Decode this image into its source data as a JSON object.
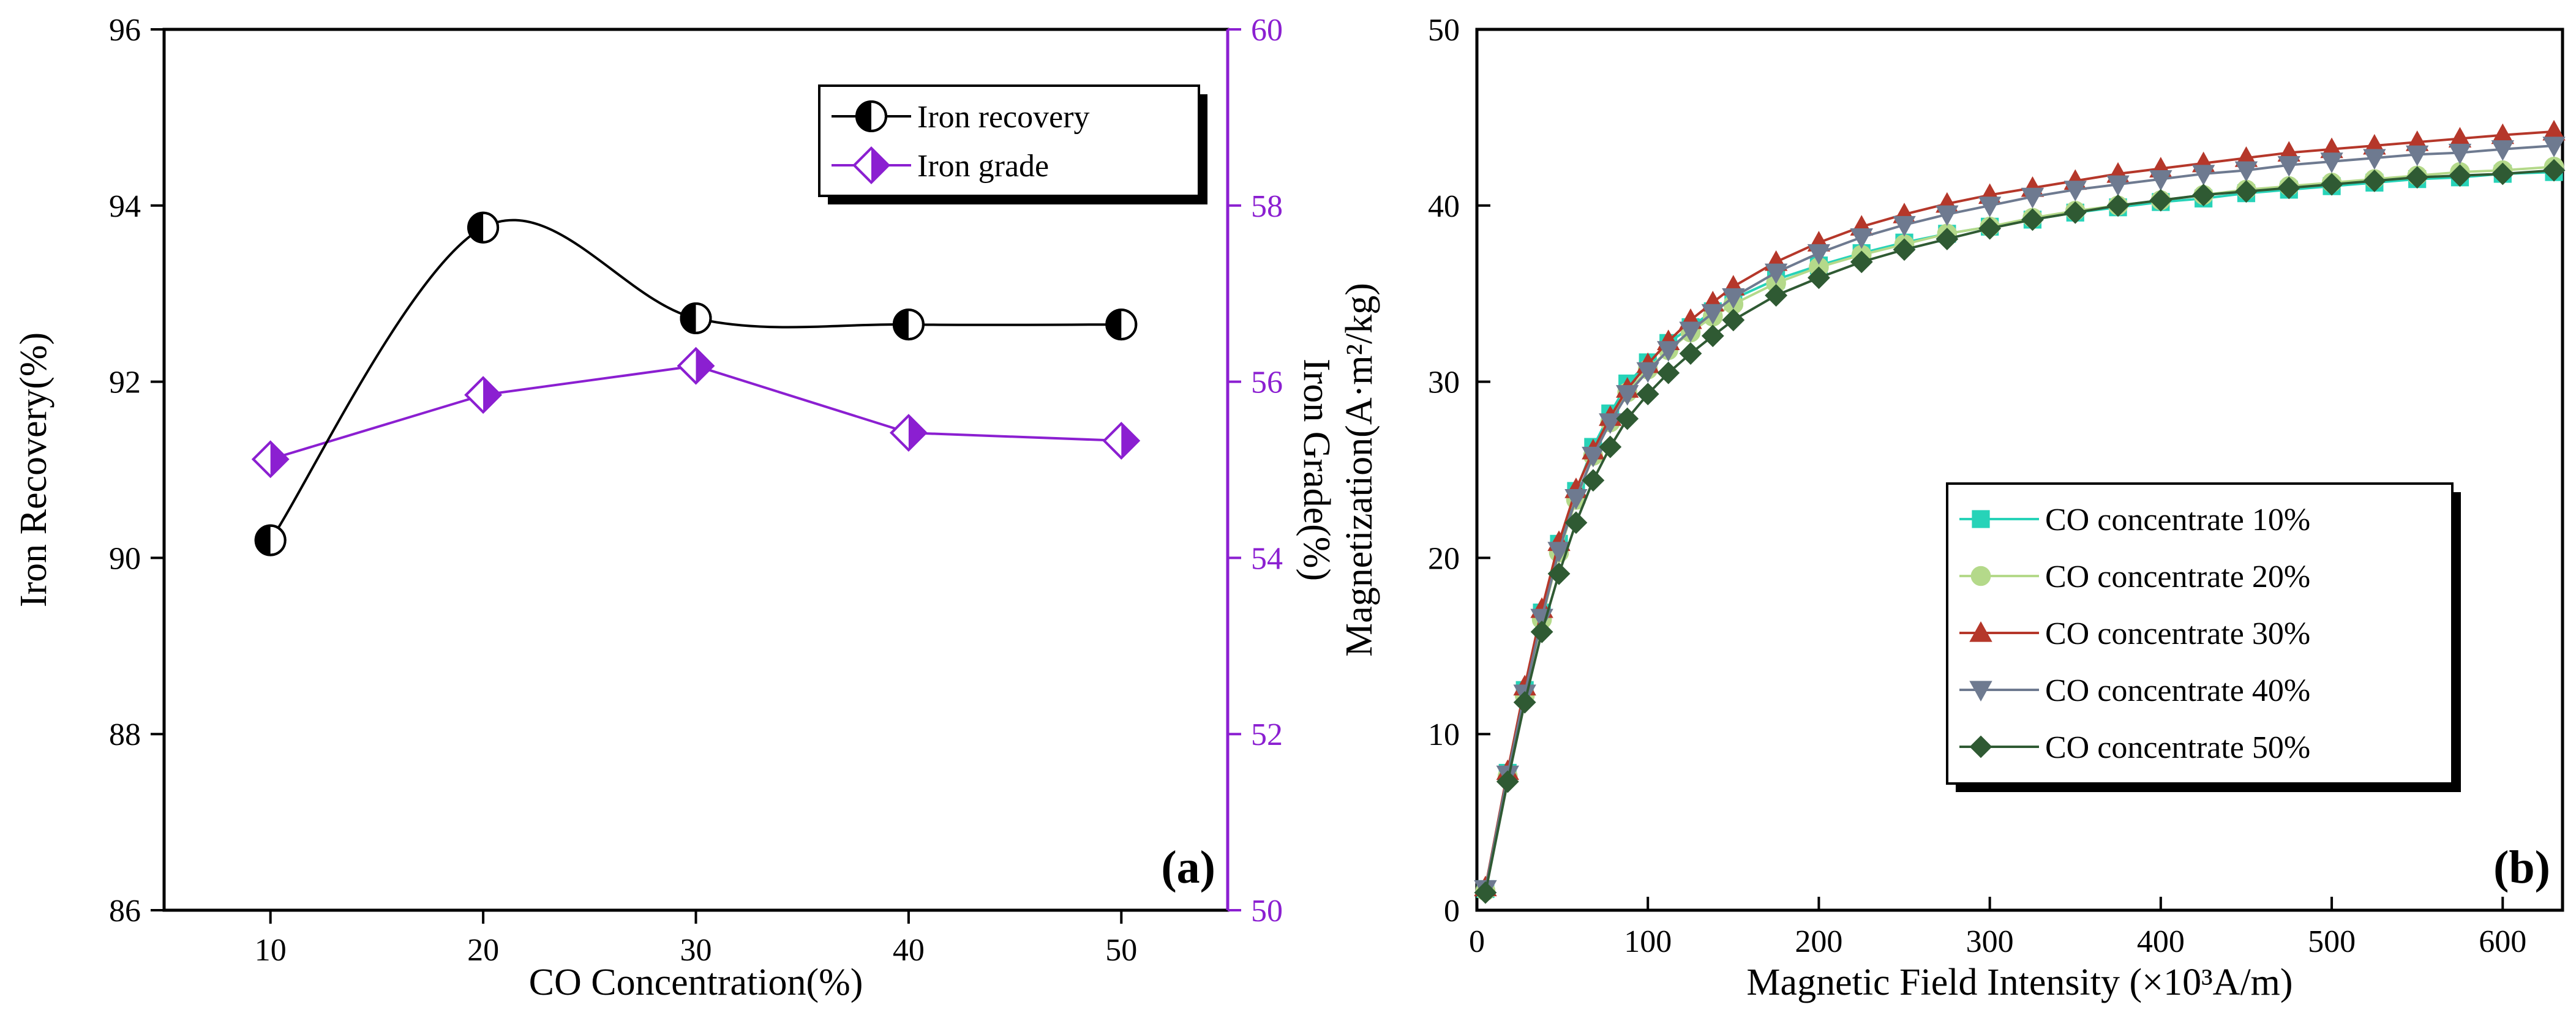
{
  "chart_data": [
    {
      "type": "line",
      "panel_label": "(a)",
      "xlabel": "CO Concentration(%)",
      "ylabel": "Iron Recovery(%)",
      "y2label": "Iron Grade(%)",
      "x": [
        10,
        20,
        30,
        40,
        50
      ],
      "xlim": [
        5,
        55
      ],
      "ylim": [
        86,
        96
      ],
      "y2lim": [
        50,
        60
      ],
      "xticks": [
        "10",
        "20",
        "30",
        "40",
        "50"
      ],
      "yticks": [
        "86",
        "88",
        "90",
        "92",
        "94",
        "96"
      ],
      "y2ticks": [
        "50",
        "52",
        "54",
        "56",
        "58",
        "60"
      ],
      "legend_position": "top-right",
      "grid": false,
      "series": [
        {
          "name": "Iron recovery",
          "axis": "left",
          "color": "#000000",
          "smooth": true,
          "values": [
            90.2,
            93.75,
            92.72,
            92.65,
            92.65
          ]
        },
        {
          "name": "Iron grade",
          "axis": "right",
          "color": "#8b1fd1",
          "smooth": false,
          "values": [
            55.12,
            55.85,
            56.18,
            55.42,
            55.33
          ]
        }
      ]
    },
    {
      "type": "line",
      "panel_label": "(b)",
      "xlabel": "Magnetic Field Intensity (×10³A/m)",
      "ylabel": "Magnetization(A·m²/kg)",
      "xlim": [
        0,
        635
      ],
      "ylim": [
        0,
        50
      ],
      "xticks": [
        "0",
        "100",
        "200",
        "300",
        "400",
        "500",
        "600"
      ],
      "yticks": [
        "0",
        "10",
        "20",
        "30",
        "40",
        "50"
      ],
      "legend_position": "bottom-right",
      "grid": false,
      "x": [
        5,
        18,
        28,
        38,
        48,
        58,
        68,
        78,
        88,
        100,
        112,
        125,
        138,
        150,
        175,
        200,
        225,
        250,
        275,
        300,
        325,
        350,
        375,
        400,
        425,
        450,
        475,
        500,
        525,
        550,
        575,
        600,
        630
      ],
      "series": [
        {
          "name": "CO concentrate 10%",
          "color": "#27d3b8",
          "marker": "square",
          "values": [
            1.2,
            7.8,
            12.5,
            16.9,
            20.8,
            23.8,
            26.3,
            28.2,
            29.9,
            31.1,
            32.2,
            33.1,
            34.0,
            34.7,
            35.8,
            36.6,
            37.3,
            37.9,
            38.4,
            38.8,
            39.2,
            39.6,
            39.9,
            40.2,
            40.4,
            40.7,
            40.9,
            41.1,
            41.3,
            41.5,
            41.6,
            41.8,
            41.9
          ]
        },
        {
          "name": "CO concentrate 20%",
          "color": "#b4d98a",
          "marker": "circle",
          "values": [
            1.1,
            7.6,
            12.2,
            16.5,
            20.3,
            23.3,
            25.8,
            27.7,
            29.4,
            30.7,
            31.8,
            32.8,
            33.7,
            34.4,
            35.6,
            36.5,
            37.2,
            37.8,
            38.4,
            38.8,
            39.3,
            39.7,
            40.0,
            40.3,
            40.6,
            40.9,
            41.1,
            41.3,
            41.5,
            41.7,
            41.9,
            42.0,
            42.2
          ]
        },
        {
          "name": "CO concentrate 30%",
          "color": "#b5372a",
          "marker": "triangle-up",
          "values": [
            1.3,
            7.9,
            12.7,
            17.1,
            20.9,
            23.9,
            26.1,
            28.0,
            29.6,
            31.0,
            32.3,
            33.5,
            34.5,
            35.4,
            36.8,
            37.9,
            38.8,
            39.5,
            40.1,
            40.6,
            41.0,
            41.4,
            41.8,
            42.1,
            42.4,
            42.7,
            43.0,
            43.2,
            43.4,
            43.6,
            43.8,
            44.0,
            44.2
          ]
        },
        {
          "name": "CO concentrate 40%",
          "color": "#6e7a90",
          "marker": "triangle-down",
          "values": [
            1.2,
            7.7,
            12.3,
            16.6,
            20.4,
            23.4,
            25.8,
            27.7,
            29.3,
            30.6,
            31.8,
            32.9,
            33.9,
            34.8,
            36.2,
            37.3,
            38.2,
            38.9,
            39.5,
            40.0,
            40.5,
            40.9,
            41.2,
            41.5,
            41.8,
            42.0,
            42.3,
            42.5,
            42.7,
            42.9,
            43.0,
            43.2,
            43.4
          ]
        },
        {
          "name": "CO concentrate 50%",
          "color": "#2f5a33",
          "marker": "diamond",
          "values": [
            1.0,
            7.3,
            11.8,
            15.8,
            19.1,
            22.0,
            24.4,
            26.3,
            27.9,
            29.3,
            30.5,
            31.6,
            32.6,
            33.5,
            34.9,
            35.9,
            36.8,
            37.5,
            38.1,
            38.7,
            39.2,
            39.6,
            40.0,
            40.3,
            40.6,
            40.8,
            41.0,
            41.2,
            41.4,
            41.6,
            41.7,
            41.8,
            42.0
          ]
        }
      ]
    }
  ]
}
